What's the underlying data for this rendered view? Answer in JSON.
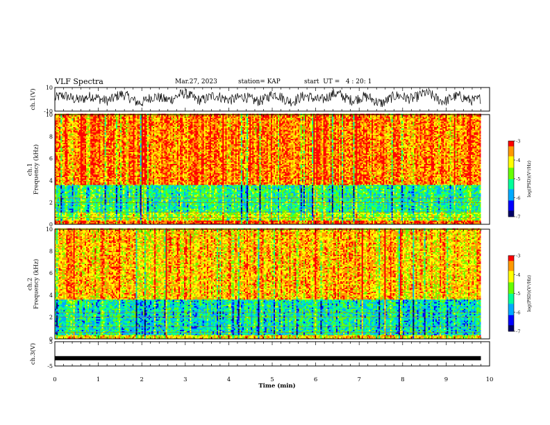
{
  "header": {
    "title": "VLF Spectra",
    "date": "Mar.27, 2023",
    "station": "station= KAP",
    "start_ut": "start  UT =   4 : 20: 1"
  },
  "chart_data": [
    {
      "type": "line",
      "panel": "ch1-waveform",
      "ylabel": "ch.1(V)",
      "ylim": [
        -10,
        10
      ],
      "yticks": [
        "10",
        "-10"
      ],
      "xlim": [
        0,
        10
      ],
      "note_values": "noisy waveform oscillating roughly between -8 and 8 V",
      "x": [
        0,
        0.5,
        1,
        1.5,
        2,
        2.5,
        3,
        3.5,
        4,
        4.5,
        5,
        5.5,
        6,
        6.5,
        7,
        7.5,
        8,
        8.5,
        9,
        9.5,
        9.8
      ],
      "values": [
        1,
        3,
        0,
        4,
        -2,
        2,
        5,
        1,
        3,
        -1,
        4,
        0,
        2,
        5,
        1,
        -2,
        3,
        6,
        0,
        2,
        1
      ]
    },
    {
      "type": "heatmap",
      "panel": "ch1-spectrogram",
      "ylabel": "ch.1\nFrequency  (kHz)",
      "ylim": [
        0,
        10
      ],
      "yticks": [
        "0",
        "2",
        "4",
        "6",
        "8",
        "10"
      ],
      "xlim": [
        0,
        10
      ],
      "bands": [
        {
          "fmin": 3.6,
          "fmax": 10,
          "level": -3.5
        },
        {
          "fmin": 1.0,
          "fmax": 3.6,
          "level": -5.2
        },
        {
          "fmin": 0.3,
          "fmax": 1.0,
          "level": -4.5
        },
        {
          "fmin": 0.0,
          "fmax": 0.3,
          "level": -3.3
        }
      ],
      "colorbar": {
        "label": "log(PSD)(V²/Hz)",
        "range": [
          -7,
          -3
        ],
        "ticks": [
          "-3",
          "-4",
          "-5",
          "-6",
          "-7"
        ]
      }
    },
    {
      "type": "heatmap",
      "panel": "ch2-spectrogram",
      "ylabel": "ch.2\nFrequency  (kHz)",
      "ylim": [
        0,
        10
      ],
      "yticks": [
        "0",
        "2",
        "4",
        "6",
        "8",
        "10"
      ],
      "xlim": [
        0,
        10
      ],
      "bands": [
        {
          "fmin": 3.6,
          "fmax": 10,
          "level": -3.8
        },
        {
          "fmin": 0.3,
          "fmax": 3.6,
          "level": -5.4
        },
        {
          "fmin": 0.0,
          "fmax": 0.3,
          "level": -4.0
        }
      ],
      "colorbar": {
        "label": "log(PSD)(V²/Hz)",
        "range": [
          -7,
          -3
        ],
        "ticks": [
          "-3",
          "-4",
          "-5",
          "-6",
          "-7"
        ]
      }
    },
    {
      "type": "line",
      "panel": "ch3-waveform",
      "ylabel": "ch.3(V)",
      "ylim": [
        -5,
        5
      ],
      "yticks": [
        "5",
        "-5"
      ],
      "xlim": [
        0,
        10
      ],
      "x": [
        0,
        9.8
      ],
      "values": [
        -1.8,
        -1.8
      ]
    }
  ],
  "xaxis": {
    "label": "Time  (min)",
    "ticks": [
      "0",
      "1",
      "2",
      "3",
      "4",
      "5",
      "6",
      "7",
      "8",
      "9",
      "10"
    ]
  },
  "colors": {
    "waveform": "#000000",
    "colormap": [
      "#000066",
      "#0000ff",
      "#00aaff",
      "#00ff99",
      "#66ff00",
      "#ffff00",
      "#ff9900",
      "#ff0000",
      "#ffffff"
    ]
  }
}
